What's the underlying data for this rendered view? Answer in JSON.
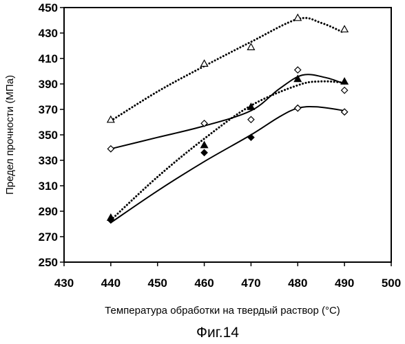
{
  "chart_data": {
    "type": "line",
    "xlabel": "Температура обработки на твердый раствор (°C)",
    "ylabel": "Предел прочности (МПа)",
    "caption": "Фиг.14",
    "xlim": [
      430,
      500
    ],
    "ylim": [
      250,
      450
    ],
    "xticks": [
      "430",
      "440",
      "450",
      "460",
      "470",
      "480",
      "490",
      "500"
    ],
    "yticks": [
      "250",
      "270",
      "290",
      "310",
      "330",
      "350",
      "370",
      "390",
      "410",
      "430",
      "450"
    ],
    "grid": false,
    "series": [
      {
        "marker": "open-triangle",
        "line": "dotted",
        "points": [
          [
            440,
            362
          ],
          [
            460,
            406
          ],
          [
            470,
            419
          ],
          [
            480,
            442
          ],
          [
            490,
            433
          ]
        ],
        "trend": [
          [
            440,
            361
          ],
          [
            450,
            384
          ],
          [
            460,
            404
          ],
          [
            470,
            423
          ],
          [
            480,
            441
          ],
          [
            485,
            438
          ],
          [
            490,
            430
          ]
        ]
      },
      {
        "marker": "open-diamond",
        "line": "solid",
        "points": [
          [
            440,
            339
          ],
          [
            460,
            359
          ],
          [
            470,
            362
          ],
          [
            480,
            401
          ],
          [
            490,
            385
          ]
        ],
        "trend": [
          [
            440,
            339
          ],
          [
            450,
            348
          ],
          [
            460,
            357
          ],
          [
            470,
            369
          ],
          [
            476,
            386
          ],
          [
            481,
            397
          ],
          [
            486,
            395
          ],
          [
            490,
            390
          ]
        ]
      },
      {
        "marker": "filled-triangle",
        "line": "dotted",
        "points": [
          [
            440,
            285
          ],
          [
            460,
            342
          ],
          [
            470,
            372
          ],
          [
            480,
            394
          ],
          [
            490,
            392
          ]
        ],
        "trend": [
          [
            440,
            283
          ],
          [
            450,
            317
          ],
          [
            460,
            347
          ],
          [
            470,
            373
          ],
          [
            480,
            389
          ],
          [
            485,
            392
          ],
          [
            490,
            391
          ]
        ]
      },
      {
        "marker": "filled-diamond",
        "line": "solid",
        "points": [
          [
            440,
            283
          ],
          [
            460,
            336
          ],
          [
            470,
            348
          ],
          [
            480,
            371
          ],
          [
            490,
            368
          ]
        ],
        "trend": [
          [
            440,
            281
          ],
          [
            450,
            306
          ],
          [
            460,
            329
          ],
          [
            470,
            350
          ],
          [
            476,
            364
          ],
          [
            480,
            371
          ],
          [
            484,
            372
          ],
          [
            490,
            369
          ]
        ]
      },
      {
        "marker": "open-diamond",
        "line": "none",
        "points": [
          [
            480,
            371
          ],
          [
            490,
            368
          ]
        ]
      }
    ]
  }
}
